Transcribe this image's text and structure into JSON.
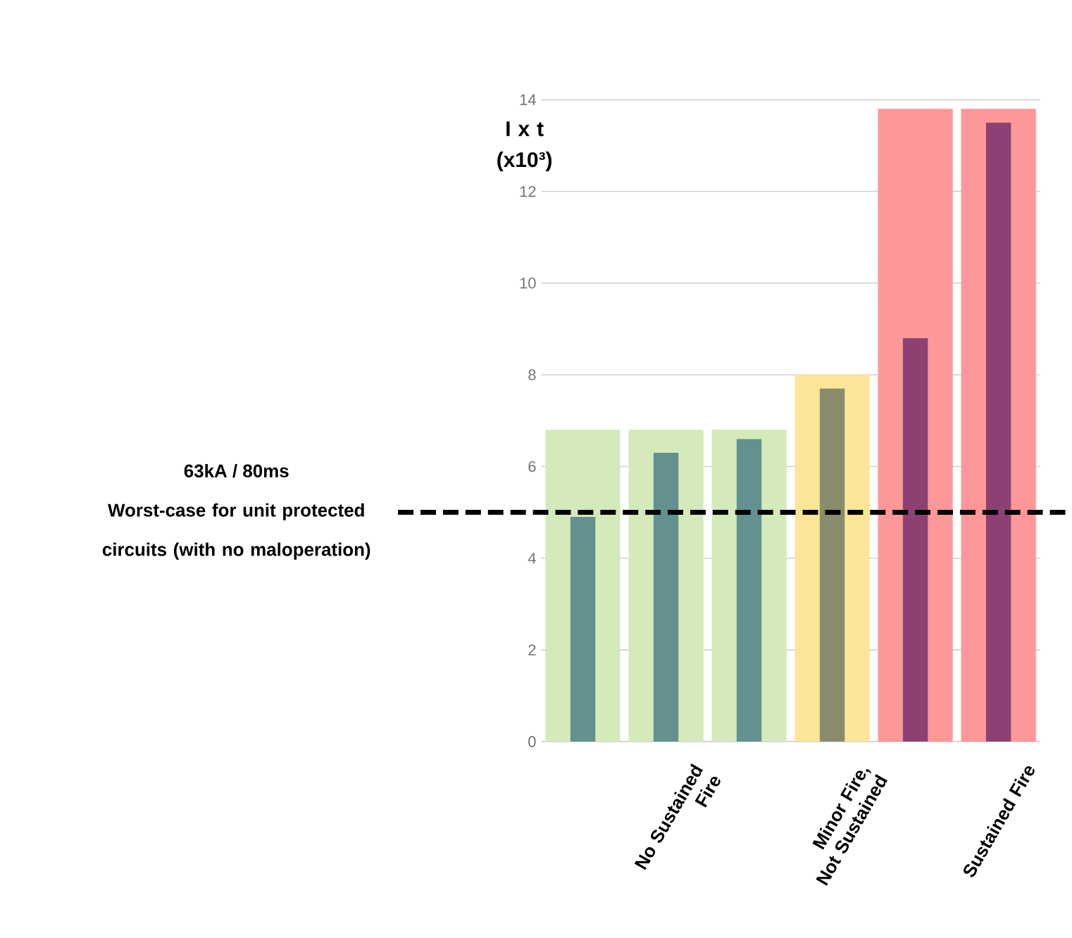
{
  "chart_data": {
    "type": "bar",
    "ylabel": "I x t (x10³)",
    "categories": [
      null,
      "No Sustained Fire",
      null,
      "Minor Fire, Not Sustained",
      null,
      "Sustained Fire"
    ],
    "ylim": [
      0,
      14
    ],
    "yticks": [
      0,
      2,
      4,
      6,
      8,
      10,
      12,
      14
    ],
    "grid": "y",
    "series": [
      {
        "colors": [
          "#d4eabb",
          "#d4eabb",
          "#d4eabb",
          "#fde597",
          "#fe9898",
          "#fe9898"
        ],
        "values": [
          6.8,
          6.8,
          6.8,
          8.0,
          13.8,
          13.8
        ]
      },
      {
        "colors": [
          "#62918f",
          "#62918f",
          "#62918f",
          "#8a8c6e",
          "#8b4272",
          "#8b4272"
        ],
        "values": [
          4.9,
          6.3,
          6.6,
          7.7,
          8.8,
          13.5
        ]
      }
    ],
    "ref_lines": [
      {
        "axis": "y",
        "value": 5,
        "label": "63kA / 80ms",
        "color": "#000000",
        "line_style": "dashed"
      }
    ],
    "annotations": [
      "Worst-case for unit protected circuits (with no maloperation)"
    ]
  }
}
